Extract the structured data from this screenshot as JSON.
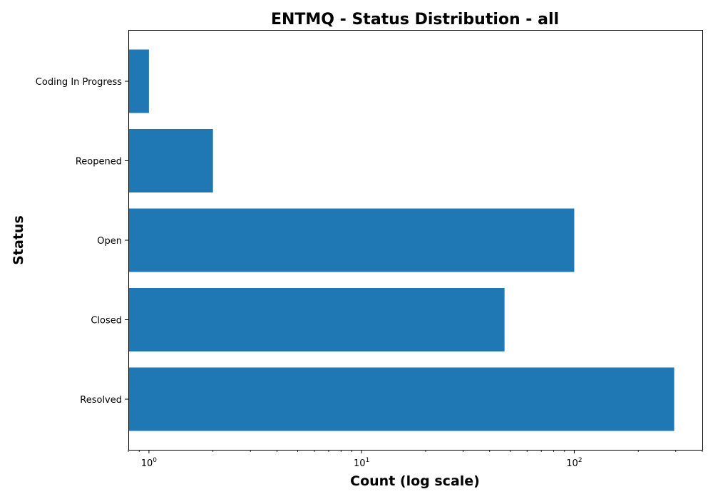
{
  "chart_data": {
    "type": "bar",
    "orientation": "horizontal",
    "title": "ENTMQ - Status Distribution - all",
    "xlabel": "Count (log scale)",
    "ylabel": "Status",
    "x_scale": "log",
    "xlim": [
      0.8,
      400
    ],
    "x_ticks": [
      {
        "value": 1,
        "base": "10",
        "exp": "0"
      },
      {
        "value": 10,
        "base": "10",
        "exp": "1"
      },
      {
        "value": 100,
        "base": "10",
        "exp": "2"
      }
    ],
    "categories": [
      "Coding In Progress",
      "Reopened",
      "Open",
      "Closed",
      "Resolved"
    ],
    "values": [
      1,
      2,
      100,
      47,
      295
    ],
    "bar_color": "#1f77b4",
    "grid": false,
    "legend": "none"
  }
}
